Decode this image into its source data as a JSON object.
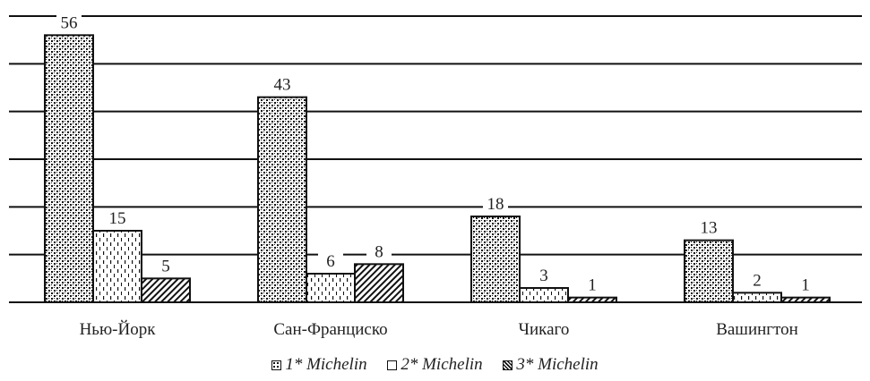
{
  "chart_data": {
    "type": "bar",
    "categories": [
      "Нью-Йорк",
      "Сан-Франциско",
      "Чикаго",
      "Вашингтон"
    ],
    "series": [
      {
        "name": "1* Michelin",
        "values": [
          56,
          43,
          18,
          13
        ]
      },
      {
        "name": "2* Michelin",
        "values": [
          15,
          6,
          3,
          2
        ]
      },
      {
        "name": "3* Michelin",
        "values": [
          5,
          8,
          1,
          1
        ]
      }
    ],
    "ylim": [
      0,
      60
    ],
    "y_gridlines": [
      10,
      20,
      30,
      40,
      50,
      60
    ],
    "grid": true,
    "legend_position": "bottom",
    "patterns": [
      "dotted-dense",
      "dashed-vertical",
      "diagonal-hatch"
    ],
    "colors": {
      "stroke": "#111111",
      "text": "#222222",
      "background": "#ffffff"
    }
  }
}
